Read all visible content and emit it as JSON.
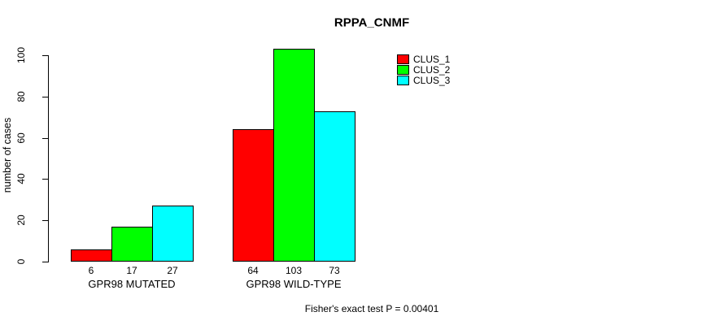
{
  "title": "RPPA_CNMF",
  "y_axis": {
    "label": "number of cases"
  },
  "footer": "Fisher's exact test P = 0.00401",
  "legend": {
    "items": [
      {
        "label": "CLUS_1",
        "color": "#ff0000"
      },
      {
        "label": "CLUS_2",
        "color": "#00ff00"
      },
      {
        "label": "CLUS_3",
        "color": "#00ffff"
      }
    ]
  },
  "chart_data": {
    "type": "bar",
    "title": "RPPA_CNMF",
    "xlabel": "",
    "ylabel": "number of cases",
    "ylim": [
      0,
      100
    ],
    "yticks": [
      0,
      20,
      40,
      60,
      80,
      100
    ],
    "grid": false,
    "legend_position": "top-right",
    "categories": [
      "GPR98 MUTATED",
      "GPR98 WILD-TYPE"
    ],
    "series": [
      {
        "name": "CLUS_1",
        "color": "#ff0000",
        "values": [
          6,
          64
        ]
      },
      {
        "name": "CLUS_2",
        "color": "#00ff00",
        "values": [
          17,
          103
        ]
      },
      {
        "name": "CLUS_3",
        "color": "#00ffff",
        "values": [
          27,
          73
        ]
      }
    ],
    "bar_value_labels": [
      [
        "6",
        "17",
        "27"
      ],
      [
        "64",
        "103",
        "73"
      ]
    ],
    "annotation": "Fisher's exact test P = 0.00401"
  }
}
